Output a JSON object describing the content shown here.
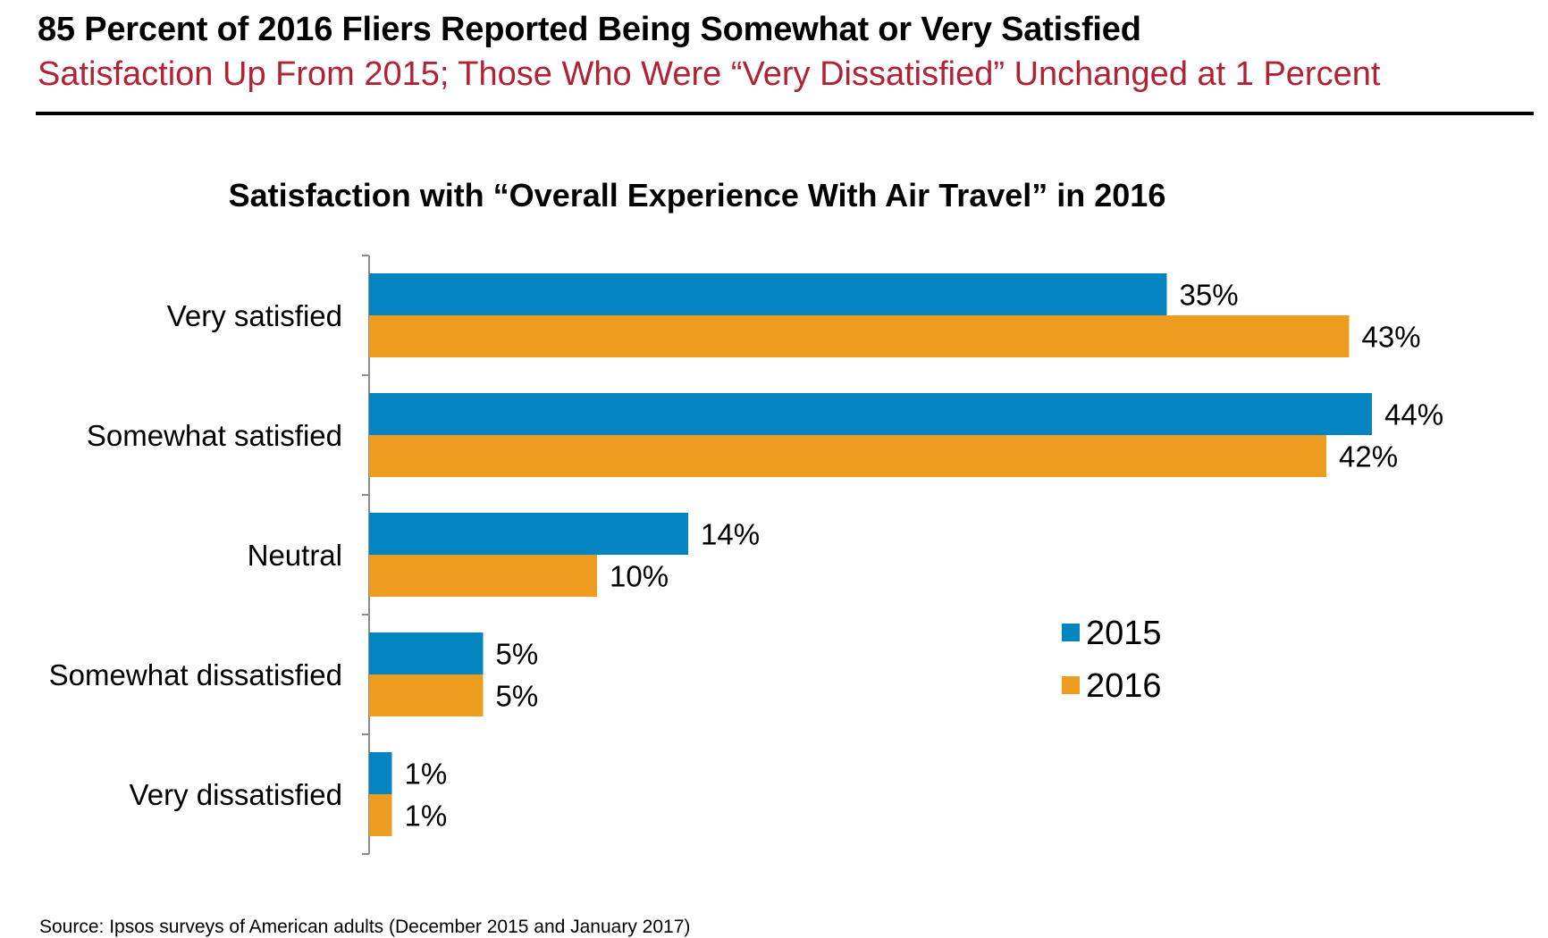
{
  "page": {
    "headline": "85 Percent of 2016 Fliers Reported Being Somewhat or Very Satisfied",
    "subheadline": "Satisfaction Up From 2015; Those Who Were “Very Dissatisfied” Unchanged at 1 Percent",
    "subheadline_color": "#b22234",
    "source": "Source: Ipsos surveys of American adults (December 2015 and January 2017)"
  },
  "chart_data": {
    "type": "bar",
    "orientation": "horizontal",
    "title": "Satisfaction with “Overall Experience With Air Travel” in 2016",
    "categories": [
      "Very satisfied",
      "Somewhat satisfied",
      "Neutral",
      "Somewhat dissatisfied",
      "Very dissatisfied"
    ],
    "series": [
      {
        "name": "2015",
        "color": "#0485c1",
        "values": [
          35,
          44,
          14,
          5,
          1
        ],
        "labels": [
          "35%",
          "44%",
          "14%",
          "5%",
          "1%"
        ]
      },
      {
        "name": "2016",
        "color": "#ee9c1e",
        "values": [
          43,
          42,
          10,
          5,
          1
        ],
        "labels": [
          "43%",
          "42%",
          "10%",
          "5%",
          "1%"
        ]
      }
    ],
    "xlim": [
      0,
      50
    ],
    "grid": false,
    "legend_position": "right"
  }
}
